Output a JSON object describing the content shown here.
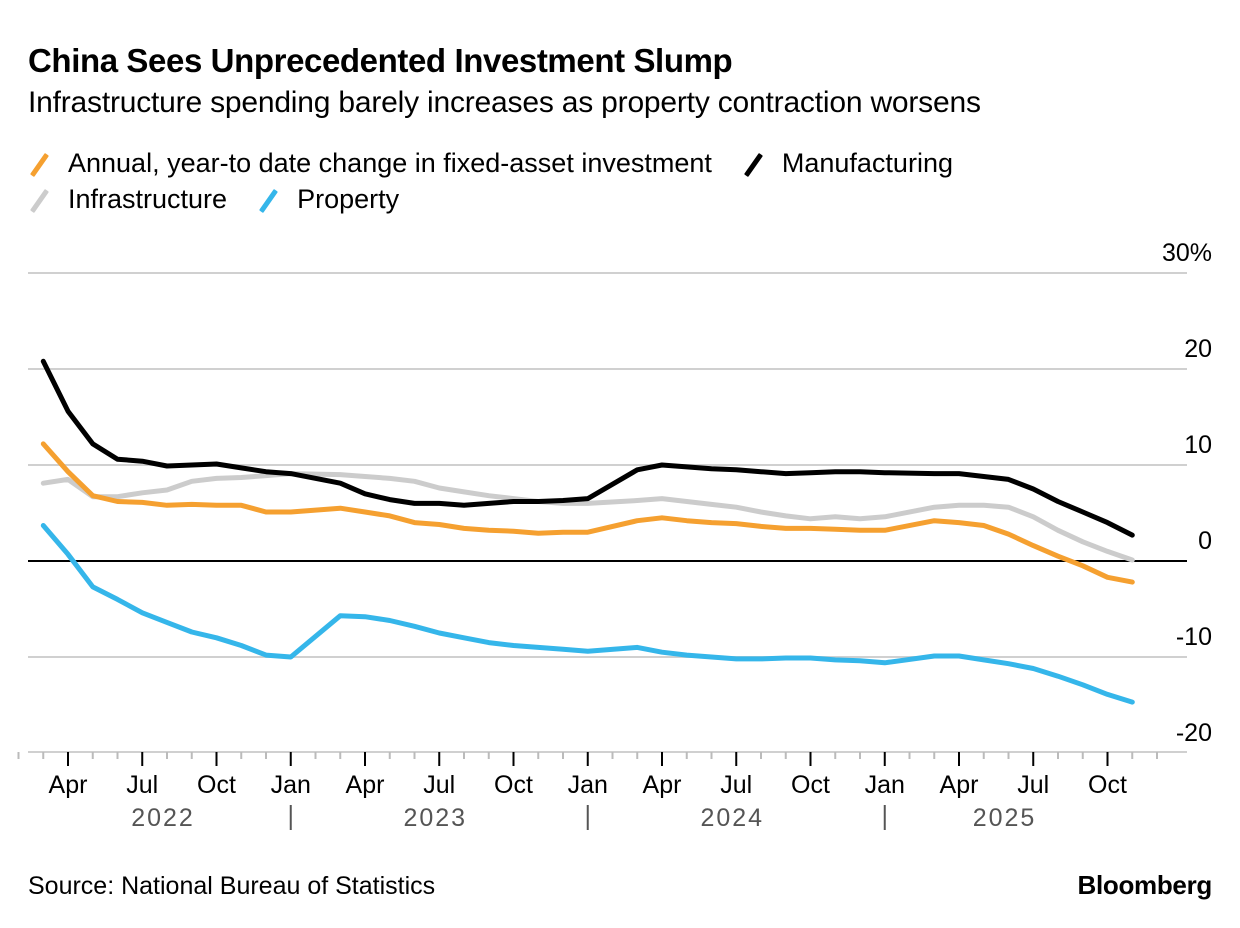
{
  "chart_data": {
    "type": "line",
    "title": "China Sees Unprecedented Investment Slump",
    "subtitle": "Infrastructure spending barely increases as property contraction worsens",
    "xlabel": "",
    "ylabel": "",
    "ylim": [
      -20,
      30
    ],
    "yticks": [
      {
        "value": 30,
        "label": "30%"
      },
      {
        "value": 20,
        "label": "20"
      },
      {
        "value": 10,
        "label": "10"
      },
      {
        "value": 0,
        "label": "0"
      },
      {
        "value": -10,
        "label": "-10"
      },
      {
        "value": -20,
        "label": "-20"
      }
    ],
    "xrange": [
      "2022-02",
      "2025-12"
    ],
    "month_ticks": [
      {
        "date": "2022-04",
        "label": "Apr"
      },
      {
        "date": "2022-07",
        "label": "Jul"
      },
      {
        "date": "2022-10",
        "label": "Oct"
      },
      {
        "date": "2023-01",
        "label": "Jan"
      },
      {
        "date": "2023-04",
        "label": "Apr"
      },
      {
        "date": "2023-07",
        "label": "Jul"
      },
      {
        "date": "2023-10",
        "label": "Oct"
      },
      {
        "date": "2024-01",
        "label": "Jan"
      },
      {
        "date": "2024-04",
        "label": "Apr"
      },
      {
        "date": "2024-07",
        "label": "Jul"
      },
      {
        "date": "2024-10",
        "label": "Oct"
      },
      {
        "date": "2025-01",
        "label": "Jan"
      },
      {
        "date": "2025-04",
        "label": "Apr"
      },
      {
        "date": "2025-07",
        "label": "Jul"
      },
      {
        "date": "2025-10",
        "label": "Oct"
      }
    ],
    "year_labels": [
      {
        "date": "2022-08",
        "label": "2022"
      },
      {
        "date": "2023-07",
        "label": "2023"
      },
      {
        "date": "2024-07",
        "label": "2024"
      },
      {
        "date": "2025-06",
        "label": "2025"
      }
    ],
    "year_separators": [
      "2023-01",
      "2024-01",
      "2025-01"
    ],
    "grid": true,
    "legend_position": "top-left",
    "x": [
      "2022-03",
      "2022-04",
      "2022-05",
      "2022-06",
      "2022-07",
      "2022-08",
      "2022-09",
      "2022-10",
      "2022-11",
      "2022-12",
      "2023-01",
      "2023-03",
      "2023-04",
      "2023-05",
      "2023-06",
      "2023-07",
      "2023-08",
      "2023-09",
      "2023-10",
      "2023-11",
      "2023-12",
      "2024-01",
      "2024-03",
      "2024-04",
      "2024-05",
      "2024-06",
      "2024-07",
      "2024-08",
      "2024-09",
      "2024-10",
      "2024-11",
      "2024-12",
      "2025-01",
      "2025-03",
      "2025-04",
      "2025-05",
      "2025-06",
      "2025-07",
      "2025-08",
      "2025-09",
      "2025-10",
      "2025-11"
    ],
    "series": [
      {
        "name": "Annual, year-to date change in fixed-asset investment",
        "color": "#f5a030",
        "values": [
          12.2,
          9.3,
          6.8,
          6.2,
          6.1,
          5.8,
          5.9,
          5.8,
          5.8,
          5.1,
          5.1,
          5.5,
          5.1,
          4.7,
          4.0,
          3.8,
          3.4,
          3.2,
          3.1,
          2.9,
          3.0,
          3.0,
          4.2,
          4.5,
          4.2,
          4.0,
          3.9,
          3.6,
          3.4,
          3.4,
          3.3,
          3.2,
          3.2,
          4.2,
          4.0,
          3.7,
          2.8,
          1.6,
          0.5,
          -0.5,
          -1.7,
          -2.2
        ]
      },
      {
        "name": "Manufacturing",
        "color": "#000000",
        "values": [
          20.8,
          15.6,
          12.2,
          10.6,
          10.4,
          9.9,
          10.0,
          10.1,
          9.7,
          9.3,
          9.1,
          8.1,
          7.0,
          6.4,
          6.0,
          6.0,
          5.8,
          6.0,
          6.2,
          6.2,
          6.3,
          6.5,
          9.5,
          10.0,
          9.8,
          9.6,
          9.5,
          9.3,
          9.1,
          9.2,
          9.3,
          9.3,
          9.2,
          9.1,
          9.1,
          8.8,
          8.5,
          7.5,
          6.2,
          5.1,
          4.0,
          2.7
        ]
      },
      {
        "name": "Infrastructure",
        "color": "#cccccc",
        "values": [
          8.1,
          8.5,
          6.7,
          6.7,
          7.1,
          7.4,
          8.3,
          8.6,
          8.7,
          8.9,
          9.1,
          9.0,
          8.8,
          8.6,
          8.3,
          7.6,
          7.2,
          6.8,
          6.5,
          6.2,
          6.0,
          6.0,
          6.3,
          6.5,
          6.2,
          5.9,
          5.6,
          5.1,
          4.7,
          4.4,
          4.6,
          4.4,
          4.6,
          5.6,
          5.8,
          5.8,
          5.6,
          4.6,
          3.2,
          2.0,
          1.0,
          0.1
        ]
      },
      {
        "name": "Property",
        "color": "#35b6ea",
        "values": [
          3.7,
          0.7,
          -2.7,
          -4.0,
          -5.4,
          -6.4,
          -7.4,
          -8.0,
          -8.8,
          -9.8,
          -10.0,
          -5.7,
          -5.8,
          -6.2,
          -6.8,
          -7.5,
          -8.0,
          -8.5,
          -8.8,
          -9.0,
          -9.2,
          -9.4,
          -9.0,
          -9.5,
          -9.8,
          -10.0,
          -10.2,
          -10.2,
          -10.1,
          -10.1,
          -10.3,
          -10.4,
          -10.6,
          -9.9,
          -9.9,
          -10.3,
          -10.7,
          -11.2,
          -12.0,
          -12.9,
          -13.9,
          -14.7
        ]
      }
    ]
  },
  "header": {
    "title": "China Sees Unprecedented Investment Slump",
    "subtitle": "Infrastructure spending barely increases as property contraction worsens"
  },
  "legend": {
    "items": [
      {
        "label": "Annual, year-to date change in fixed-asset investment",
        "color": "#f5a030"
      },
      {
        "label": "Manufacturing",
        "color": "#000000"
      },
      {
        "label": "Infrastructure",
        "color": "#cccccc"
      },
      {
        "label": "Property",
        "color": "#35b6ea"
      }
    ]
  },
  "footer": {
    "source": "Source: National Bureau of Statistics",
    "brand": "Bloomberg"
  }
}
